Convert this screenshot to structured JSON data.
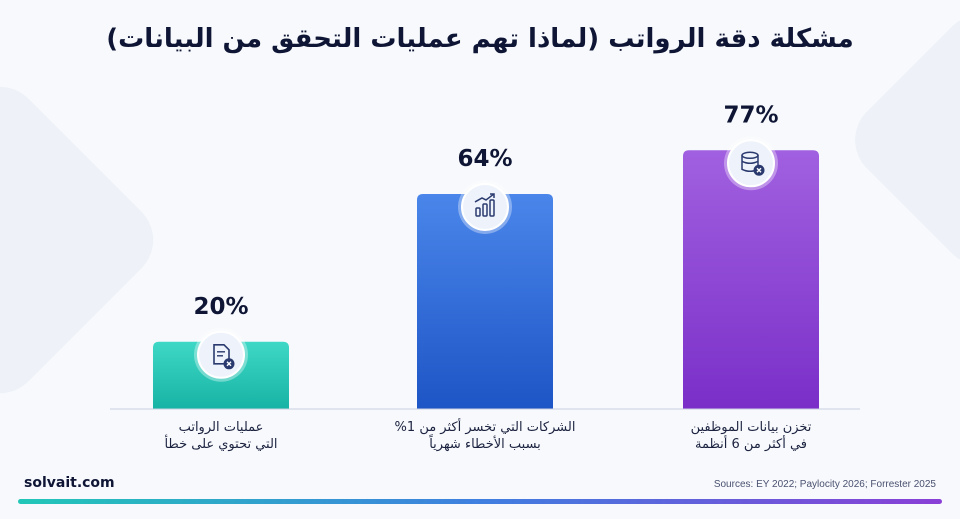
{
  "title": "مشكلة دقة الرواتب (لماذا تهم عمليات التحقق من البيانات)",
  "brand": "solvait.com",
  "sources": "Sources: EY 2022; Paylocity 2026; Forrester 2025",
  "colors": {
    "teal": "#27c7b5",
    "blue": "#2d66d6",
    "purple": "#8a3fd6",
    "title": "#0f1635"
  },
  "chart_data": {
    "type": "bar",
    "title": "مشكلة دقة الرواتب (لماذا تهم عمليات التحقق من البيانات)",
    "categories": [
      [
        "عمليات الرواتب",
        "التي تحتوي على خطأ"
      ],
      [
        "الشركات التي تخسر أكثر من 1%",
        "بسبب الأخطاء شهرياً"
      ],
      [
        "تخزن بيانات الموظفين",
        "في أكثر من 6 أنظمة"
      ]
    ],
    "values": [
      20,
      64,
      77
    ],
    "value_labels": [
      "20%",
      "64%",
      "77%"
    ],
    "icons": [
      "document-error-icon",
      "growth-chart-icon",
      "database-error-icon"
    ],
    "bar_colors": [
      [
        "#3fd8c6",
        "#17b3a4"
      ],
      [
        "#4a86ea",
        "#1e55c6"
      ],
      [
        "#a160e0",
        "#7a2fc8"
      ]
    ],
    "ylim": [
      0,
      100
    ],
    "grid": false,
    "legend": "none"
  }
}
